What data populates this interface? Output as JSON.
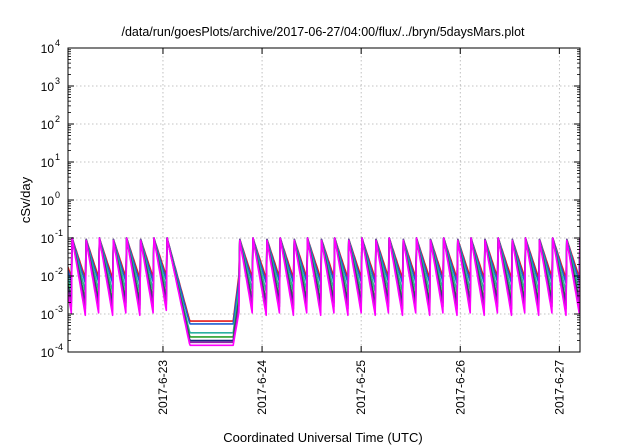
{
  "chart_data": {
    "type": "line",
    "title": "/data/run/goesPlots/archive/2017-06-27/04:00/flux/../bryn/5daysMars.plot",
    "xlabel": "Coordinated Universal Time (UTC)",
    "ylabel": "cSv/day",
    "yscale": "log",
    "ylim": [
      0.0001,
      10000
    ],
    "y_ticks": [
      {
        "value": 0.0001,
        "base": "10",
        "exp": "-4"
      },
      {
        "value": 0.001,
        "base": "10",
        "exp": "-3"
      },
      {
        "value": 0.01,
        "base": "10",
        "exp": "-2"
      },
      {
        "value": 0.1,
        "base": "10",
        "exp": "-1"
      },
      {
        "value": 1,
        "base": "10",
        "exp": "0"
      },
      {
        "value": 10,
        "base": "10",
        "exp": "1"
      },
      {
        "value": 100,
        "base": "10",
        "exp": "2"
      },
      {
        "value": 1000,
        "base": "10",
        "exp": "3"
      },
      {
        "value": 10000,
        "base": "10",
        "exp": "4"
      }
    ],
    "xlim": [
      "2017-06-22T01:00",
      "2017-06-27T05:00"
    ],
    "x_ticks": [
      "2017-6-23",
      "2017-6-24",
      "2017-6-25",
      "2017-6-26",
      "2017-6-27"
    ],
    "grid": true,
    "sawtooth": {
      "period_hours": 3.3,
      "peak_hours_after_start": 1.0,
      "peak_value": 0.1,
      "trough_values": {
        "red": 0.008,
        "blue": 0.006,
        "teal": 0.0035,
        "green": 0.002,
        "navy": 0.0015,
        "purple": 0.0012,
        "magenta": 0.0008
      }
    },
    "dip": {
      "descent_start": "2017-06-23T01:00",
      "flat_start": "2017-06-23T06:30",
      "flat_end": "2017-06-23T17:00",
      "recovery": "2017-06-23T18:30"
    },
    "series": [
      {
        "id": "red",
        "color": "#e41a1c",
        "dip_value": 0.00065
      },
      {
        "id": "blue",
        "color": "#1f5fd0",
        "dip_value": 0.00055
      },
      {
        "id": "teal",
        "color": "#2bb0a0",
        "dip_value": 0.00032
      },
      {
        "id": "green",
        "color": "#2ca02c",
        "dip_value": 0.00025
      },
      {
        "id": "navy",
        "color": "#1a237e",
        "dip_value": 0.0002
      },
      {
        "id": "purple",
        "color": "#8e24aa",
        "dip_value": 0.00018
      },
      {
        "id": "magenta",
        "color": "#ff00ff",
        "dip_value": 0.00015
      }
    ]
  }
}
